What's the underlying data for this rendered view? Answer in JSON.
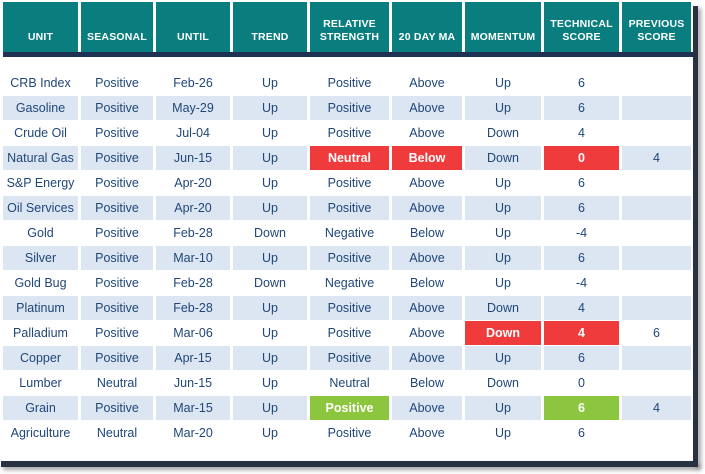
{
  "colors": {
    "header_bg": "#0a7e7e",
    "header_text": "#ffffff",
    "row_stripe": "#dce6f2",
    "row_white": "#ffffff",
    "body_text": "#1f4678",
    "highlight_red": "#f03b3c",
    "highlight_green": "#8cc63e",
    "header_divider": "#1f3254",
    "frame_border": "#2a3140"
  },
  "table": {
    "columns": [
      {
        "key": "unit",
        "label": "UNIT"
      },
      {
        "key": "seasonal",
        "label": "SEASONAL"
      },
      {
        "key": "until",
        "label": "UNTIL"
      },
      {
        "key": "trend",
        "label": "TREND"
      },
      {
        "key": "relative_strength",
        "label": "RELATIVE STRENGTH"
      },
      {
        "key": "ma20",
        "label": "20 DAY MA"
      },
      {
        "key": "momentum",
        "label": "MOMENTUM"
      },
      {
        "key": "technical_score",
        "label": "TECHNICAL SCORE"
      },
      {
        "key": "previous_score",
        "label": "PREVIOUS SCORE"
      }
    ],
    "rows": [
      {
        "cells": {
          "unit": "CRB Index",
          "seasonal": "Positive",
          "until": "Feb-26",
          "trend": "Up",
          "relative_strength": "Positive",
          "ma20": "Above",
          "momentum": "Up",
          "technical_score": "6",
          "previous_score": ""
        },
        "highlights": {}
      },
      {
        "cells": {
          "unit": "Gasoline",
          "seasonal": "Positive",
          "until": "May-29",
          "trend": "Up",
          "relative_strength": "Positive",
          "ma20": "Above",
          "momentum": "Up",
          "technical_score": "6",
          "previous_score": ""
        },
        "highlights": {}
      },
      {
        "cells": {
          "unit": "Crude Oil",
          "seasonal": "Positive",
          "until": "Jul-04",
          "trend": "Up",
          "relative_strength": "Positive",
          "ma20": "Above",
          "momentum": "Down",
          "technical_score": "4",
          "previous_score": ""
        },
        "highlights": {}
      },
      {
        "cells": {
          "unit": "Natural Gas",
          "seasonal": "Positive",
          "until": "Jun-15",
          "trend": "Up",
          "relative_strength": "Neutral",
          "ma20": "Below",
          "momentum": "Down",
          "technical_score": "0",
          "previous_score": "4"
        },
        "highlights": {
          "relative_strength": "red",
          "ma20": "red",
          "technical_score": "red"
        }
      },
      {
        "cells": {
          "unit": "S&P Energy",
          "seasonal": "Positive",
          "until": "Apr-20",
          "trend": "Up",
          "relative_strength": "Positive",
          "ma20": "Above",
          "momentum": "Up",
          "technical_score": "6",
          "previous_score": ""
        },
        "highlights": {}
      },
      {
        "cells": {
          "unit": "Oil Services",
          "seasonal": "Positive",
          "until": "Apr-20",
          "trend": "Up",
          "relative_strength": "Positive",
          "ma20": "Above",
          "momentum": "Up",
          "technical_score": "6",
          "previous_score": ""
        },
        "highlights": {}
      },
      {
        "cells": {
          "unit": "Gold",
          "seasonal": "Positive",
          "until": "Feb-28",
          "trend": "Down",
          "relative_strength": "Negative",
          "ma20": "Below",
          "momentum": "Up",
          "technical_score": "-4",
          "previous_score": ""
        },
        "highlights": {}
      },
      {
        "cells": {
          "unit": "Silver",
          "seasonal": "Positive",
          "until": "Mar-10",
          "trend": "Up",
          "relative_strength": "Positive",
          "ma20": "Above",
          "momentum": "Up",
          "technical_score": "6",
          "previous_score": ""
        },
        "highlights": {}
      },
      {
        "cells": {
          "unit": "Gold Bug",
          "seasonal": "Positive",
          "until": "Feb-28",
          "trend": "Down",
          "relative_strength": "Negative",
          "ma20": "Below",
          "momentum": "Up",
          "technical_score": "-4",
          "previous_score": ""
        },
        "highlights": {}
      },
      {
        "cells": {
          "unit": "Platinum",
          "seasonal": "Positive",
          "until": "Feb-28",
          "trend": "Up",
          "relative_strength": "Positive",
          "ma20": "Above",
          "momentum": "Down",
          "technical_score": "4",
          "previous_score": ""
        },
        "highlights": {}
      },
      {
        "cells": {
          "unit": "Palladium",
          "seasonal": "Positive",
          "until": "Mar-06",
          "trend": "Up",
          "relative_strength": "Positive",
          "ma20": "Above",
          "momentum": "Down",
          "technical_score": "4",
          "previous_score": "6"
        },
        "highlights": {
          "momentum": "red",
          "technical_score": "red"
        }
      },
      {
        "cells": {
          "unit": "Copper",
          "seasonal": "Positive",
          "until": "Apr-15",
          "trend": "Up",
          "relative_strength": "Positive",
          "ma20": "Above",
          "momentum": "Up",
          "technical_score": "6",
          "previous_score": ""
        },
        "highlights": {}
      },
      {
        "cells": {
          "unit": "Lumber",
          "seasonal": "Neutral",
          "until": "Jun-15",
          "trend": "Up",
          "relative_strength": "Neutral",
          "ma20": "Below",
          "momentum": "Down",
          "technical_score": "0",
          "previous_score": ""
        },
        "highlights": {}
      },
      {
        "cells": {
          "unit": "Grain",
          "seasonal": "Positive",
          "until": "Mar-15",
          "trend": "Up",
          "relative_strength": "Positive",
          "ma20": "Above",
          "momentum": "Up",
          "technical_score": "6",
          "previous_score": "4"
        },
        "highlights": {
          "relative_strength": "green",
          "technical_score": "green"
        }
      },
      {
        "cells": {
          "unit": "Agriculture",
          "seasonal": "Neutral",
          "until": "Mar-20",
          "trend": "Up",
          "relative_strength": "Positive",
          "ma20": "Above",
          "momentum": "Up",
          "technical_score": "6",
          "previous_score": ""
        },
        "highlights": {}
      }
    ]
  }
}
